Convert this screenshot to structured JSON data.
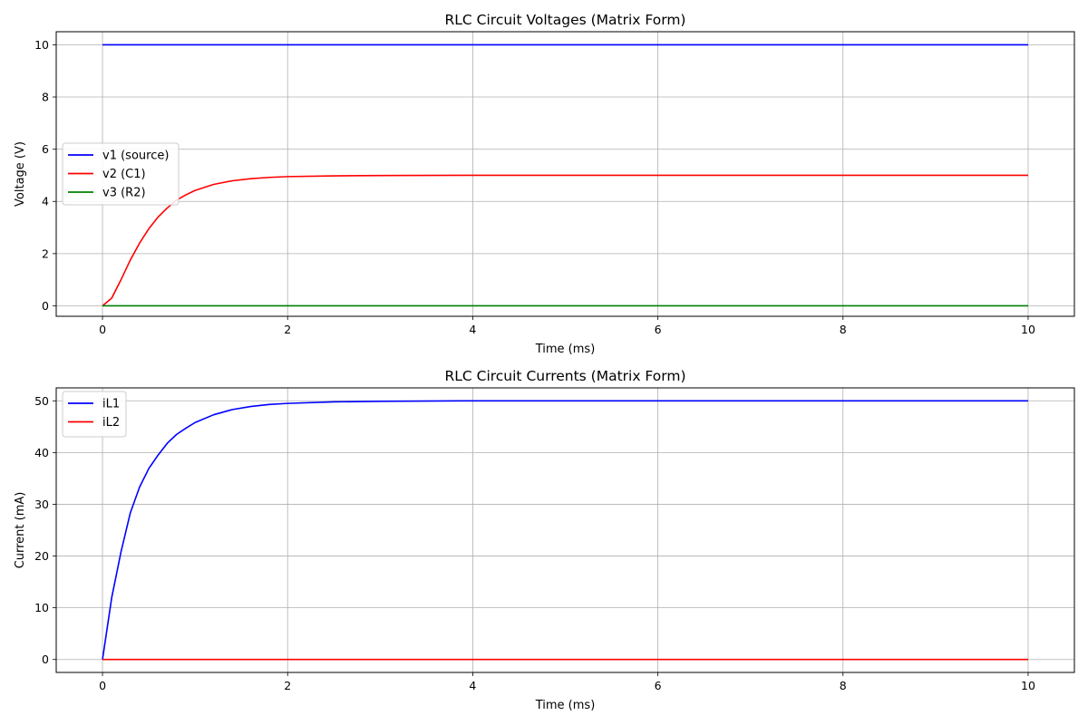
{
  "chart_data": [
    {
      "type": "line",
      "title": "RLC Circuit Voltages (Matrix Form)",
      "xlabel": "Time (ms)",
      "ylabel": "Voltage (V)",
      "xlim": [
        -0.5,
        10.5
      ],
      "ylim": [
        -0.4,
        10.5
      ],
      "xticks": [
        0,
        2,
        4,
        6,
        8,
        10
      ],
      "yticks": [
        0,
        2,
        4,
        6,
        8,
        10
      ],
      "grid": true,
      "legend_position": "center-left",
      "series": [
        {
          "name": "v1 (source)",
          "color": "#0000ff",
          "x": [
            0,
            10
          ],
          "y": [
            10,
            10
          ]
        },
        {
          "name": "v2 (C1)",
          "color": "#ff0000",
          "x": [
            0,
            0.1,
            0.2,
            0.3,
            0.4,
            0.5,
            0.6,
            0.7,
            0.8,
            0.9,
            1.0,
            1.2,
            1.4,
            1.6,
            1.8,
            2.0,
            2.5,
            3.0,
            4.0,
            6.0,
            8.0,
            10.0
          ],
          "y": [
            0,
            0.3,
            1.0,
            1.75,
            2.4,
            2.95,
            3.4,
            3.75,
            4.05,
            4.25,
            4.42,
            4.65,
            4.79,
            4.87,
            4.92,
            4.95,
            4.98,
            4.99,
            5.0,
            5.0,
            5.0,
            5.0
          ]
        },
        {
          "name": "v3 (R2)",
          "color": "#008000",
          "x": [
            0,
            10
          ],
          "y": [
            0,
            0
          ]
        }
      ]
    },
    {
      "type": "line",
      "title": "RLC Circuit Currents (Matrix Form)",
      "xlabel": "Time (ms)",
      "ylabel": "Current (mA)",
      "xlim": [
        -0.5,
        10.5
      ],
      "ylim": [
        -2.5,
        52.5
      ],
      "xticks": [
        0,
        2,
        4,
        6,
        8,
        10
      ],
      "yticks": [
        0,
        10,
        20,
        30,
        40,
        50
      ],
      "grid": true,
      "legend_position": "top-left",
      "series": [
        {
          "name": "iL1",
          "color": "#0000ff",
          "x": [
            0,
            0.1,
            0.2,
            0.3,
            0.4,
            0.5,
            0.6,
            0.7,
            0.8,
            0.9,
            1.0,
            1.2,
            1.4,
            1.6,
            1.8,
            2.0,
            2.5,
            3.0,
            4.0,
            6.0,
            8.0,
            10.0
          ],
          "y": [
            0,
            12.0,
            20.8,
            28.3,
            33.3,
            36.9,
            39.5,
            41.8,
            43.5,
            44.7,
            45.8,
            47.3,
            48.3,
            48.9,
            49.3,
            49.5,
            49.8,
            49.9,
            50.0,
            50.0,
            50.0,
            50.0
          ]
        },
        {
          "name": "iL2",
          "color": "#ff0000",
          "x": [
            0,
            10
          ],
          "y": [
            0,
            0
          ]
        }
      ]
    }
  ]
}
